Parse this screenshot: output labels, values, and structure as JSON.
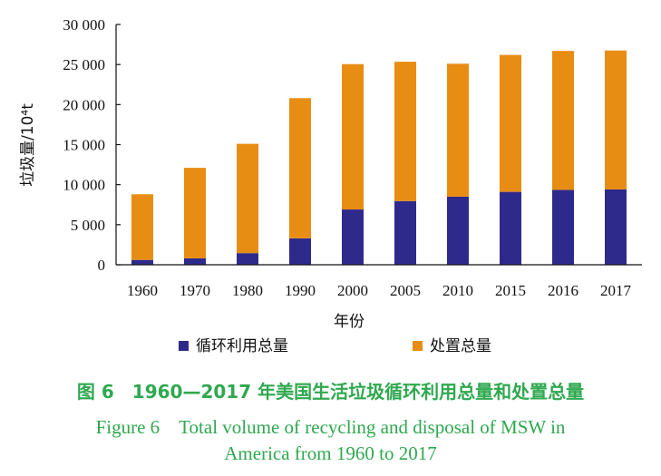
{
  "chart_data": {
    "type": "bar",
    "stacked": true,
    "categories": [
      "1960",
      "1970",
      "1980",
      "1990",
      "2000",
      "2005",
      "2010",
      "2015",
      "2016",
      "2017"
    ],
    "series": [
      {
        "name": "循环利用总量",
        "color": "#2e2a8c",
        "values": [
          600,
          800,
          1450,
          3300,
          6900,
          7950,
          8500,
          9100,
          9350,
          9400
        ]
      },
      {
        "name": "处置总量",
        "color": "#e88d13",
        "values": [
          8200,
          11300,
          13650,
          17500,
          18150,
          17400,
          16600,
          17100,
          17350,
          17350
        ]
      }
    ],
    "ylim": [
      0,
      30000
    ],
    "yticks": [
      0,
      5000,
      10000,
      15000,
      20000,
      25000,
      30000
    ],
    "ytick_labels": [
      "0",
      "5 000",
      "10 000",
      "15 000",
      "20 000",
      "25 000",
      "30 000"
    ],
    "xlabel": "年份",
    "ylabel": "垃圾量/10⁴t",
    "legend_position": "bottom",
    "grid": false
  },
  "caption": {
    "cn": "图 6　1960—2017 年美国生活垃圾循环利用总量和处置总量",
    "en_line1": "Figure 6　Total volume of recycling and disposal of MSW in",
    "en_line2": "America from 1960 to 2017"
  }
}
